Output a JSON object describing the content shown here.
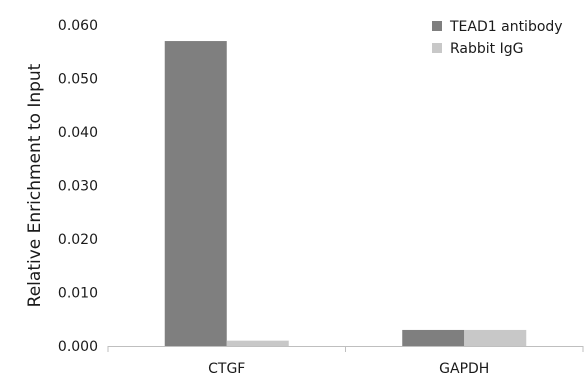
{
  "chart_data": {
    "type": "bar",
    "title": "",
    "xlabel": "",
    "ylabel": "Relative Enrichment to Input",
    "categories": [
      "CTGF",
      "GAPDH"
    ],
    "series": [
      {
        "name": "TEAD1 antibody",
        "values": [
          0.057,
          0.003
        ],
        "color": "#7f7f7f"
      },
      {
        "name": "Rabbit IgG",
        "values": [
          0.001,
          0.003
        ],
        "color": "#c8c8c8"
      }
    ],
    "ylim": [
      0,
      0.06
    ],
    "yticks": [
      "0.000",
      "0.010",
      "0.020",
      "0.030",
      "0.040",
      "0.050",
      "0.060"
    ],
    "ytick_values": [
      0,
      0.01,
      0.02,
      0.03,
      0.04,
      0.05,
      0.06
    ],
    "grid": false,
    "legend_position": "top-right"
  }
}
